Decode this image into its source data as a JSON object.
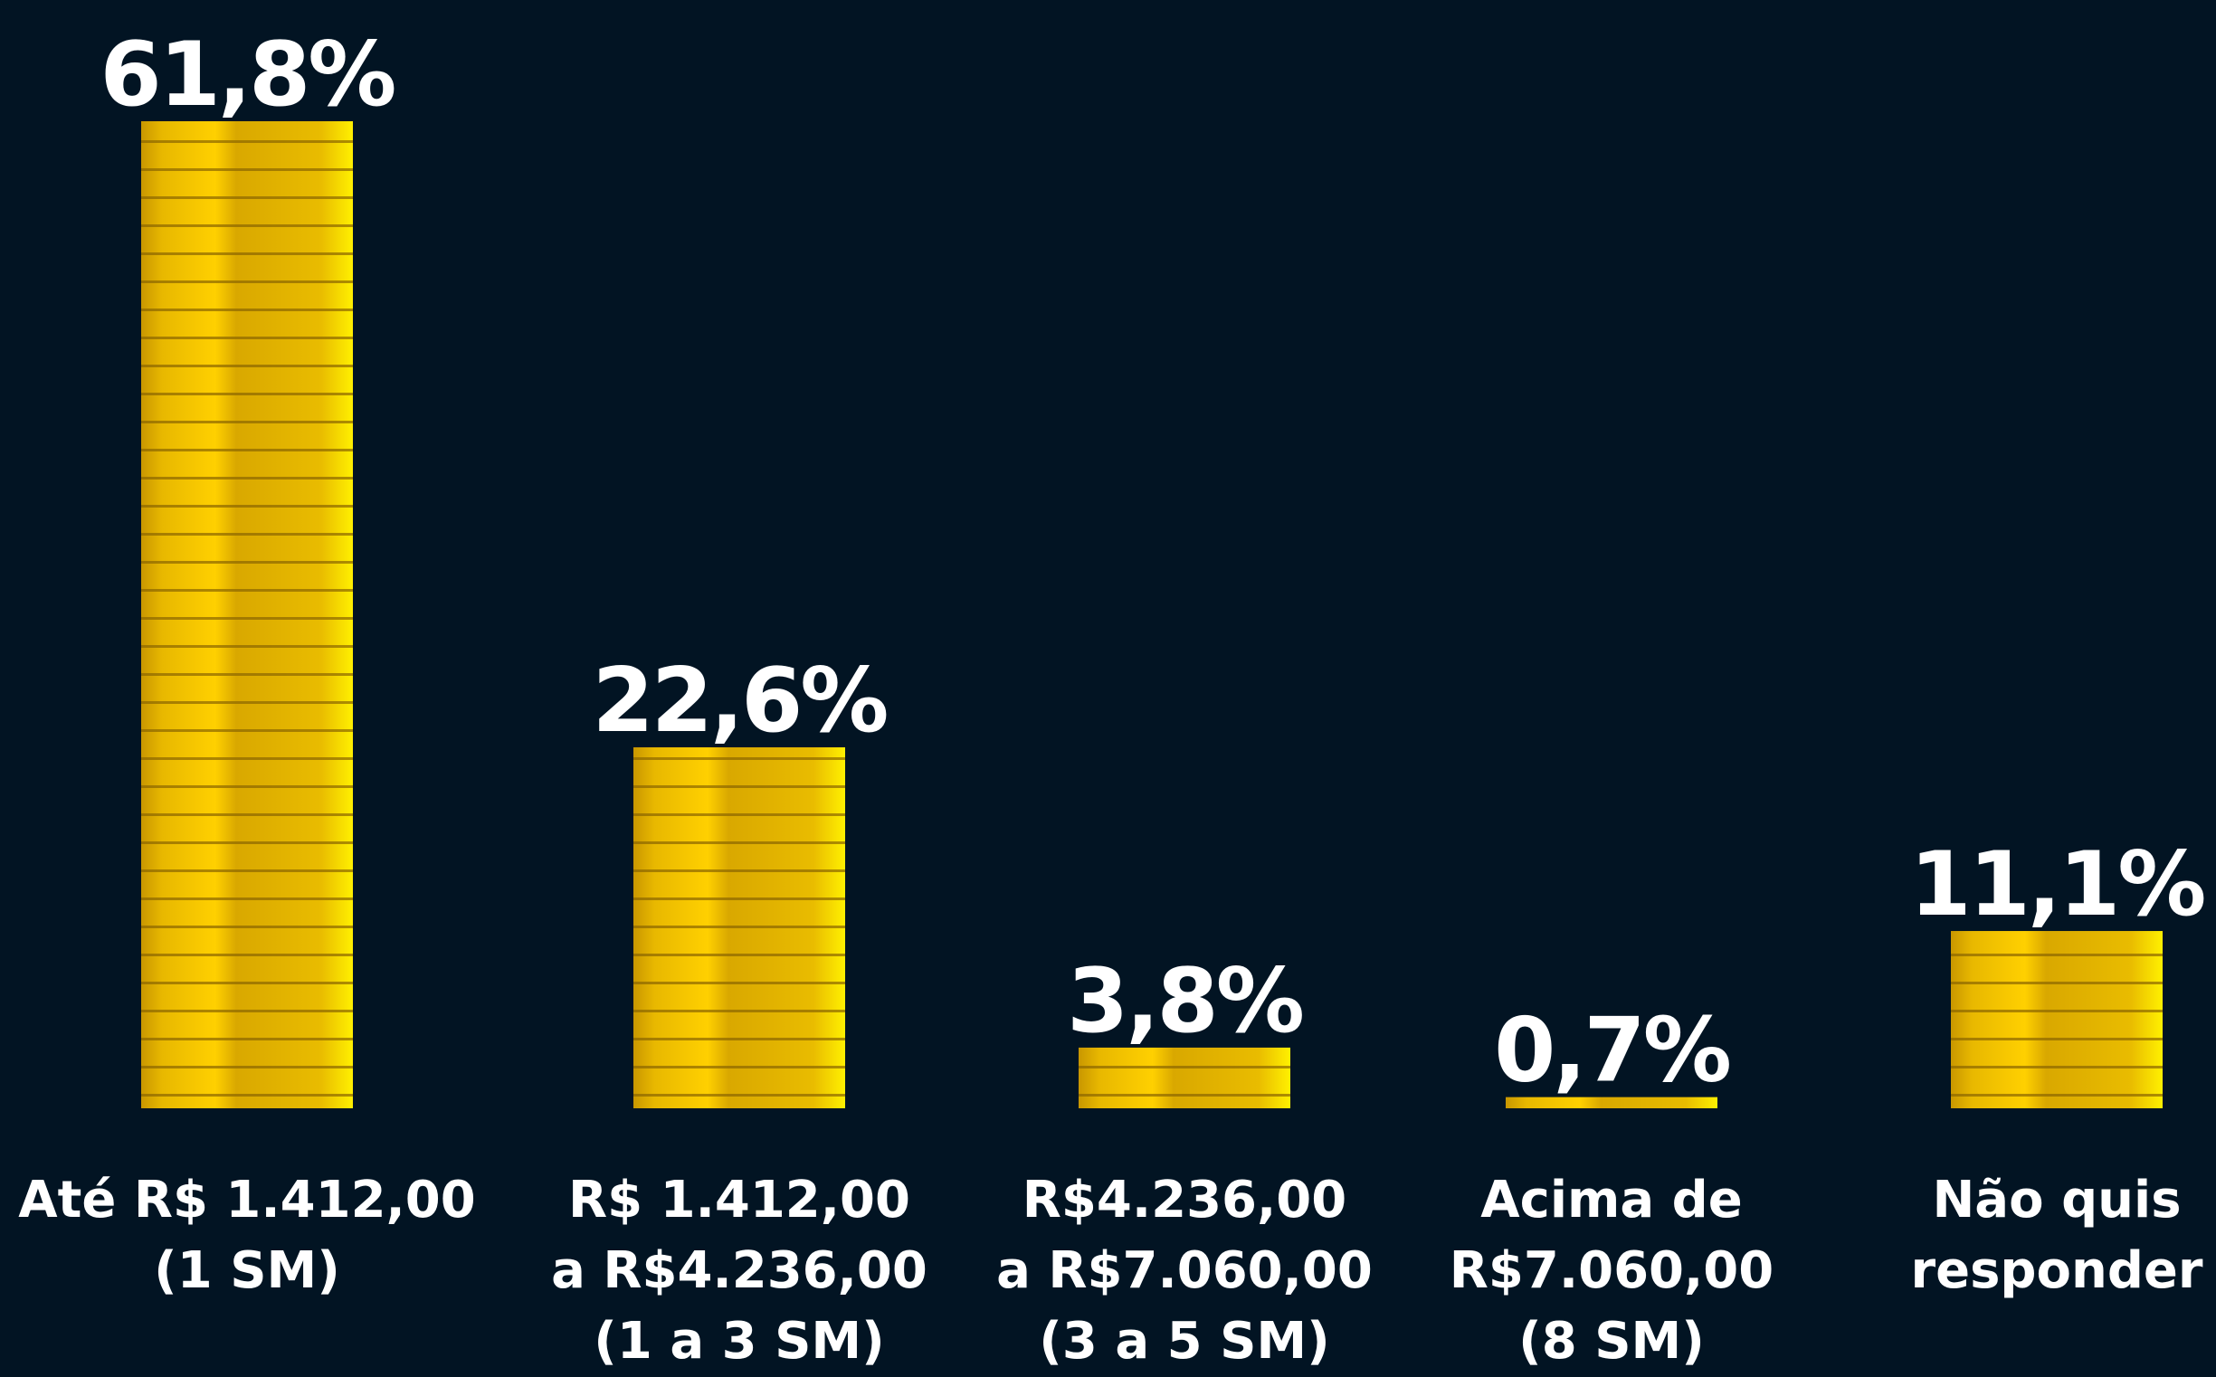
{
  "chart_data": {
    "type": "bar",
    "categories": [
      [
        "Até R$ 1.412,00",
        "(1 SM)"
      ],
      [
        "R$ 1.412,00",
        "a R$4.236,00",
        "(1 a 3 SM)"
      ],
      [
        "R$4.236,00",
        "a R$7.060,00",
        "(3 a 5 SM)"
      ],
      [
        "Acima de",
        "R$7.060,00",
        "(8 SM)"
      ],
      [
        "Não quis",
        "responder"
      ]
    ],
    "values": [
      61.8,
      22.6,
      3.8,
      0.7,
      11.1
    ],
    "value_labels": [
      "61,8%",
      "22,6%",
      "3,8%",
      "0,7%",
      "11,1%"
    ],
    "color": "#f5c400"
  }
}
